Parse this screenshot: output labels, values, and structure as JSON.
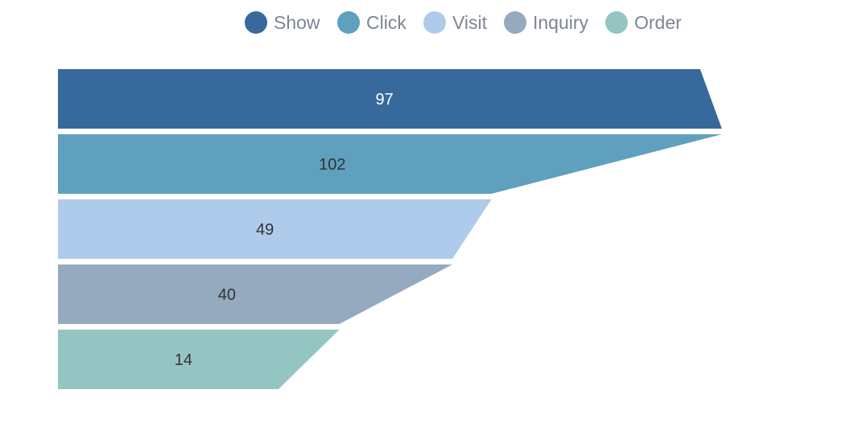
{
  "chart_data": {
    "type": "funnel",
    "sort": "none",
    "align": "left",
    "legend_position": "top",
    "categories": [
      "Show",
      "Click",
      "Visit",
      "Inquiry",
      "Order"
    ],
    "values": [
      97,
      102,
      49,
      40,
      14
    ],
    "colors": [
      "#37699d",
      "#5ea0bd",
      "#afcbec",
      "#95aabe",
      "#94c5c2"
    ],
    "label_colors": [
      "#ffffff",
      "#333333",
      "#333333",
      "#333333",
      "#333333"
    ],
    "legend_text_color": "#7c8594"
  }
}
